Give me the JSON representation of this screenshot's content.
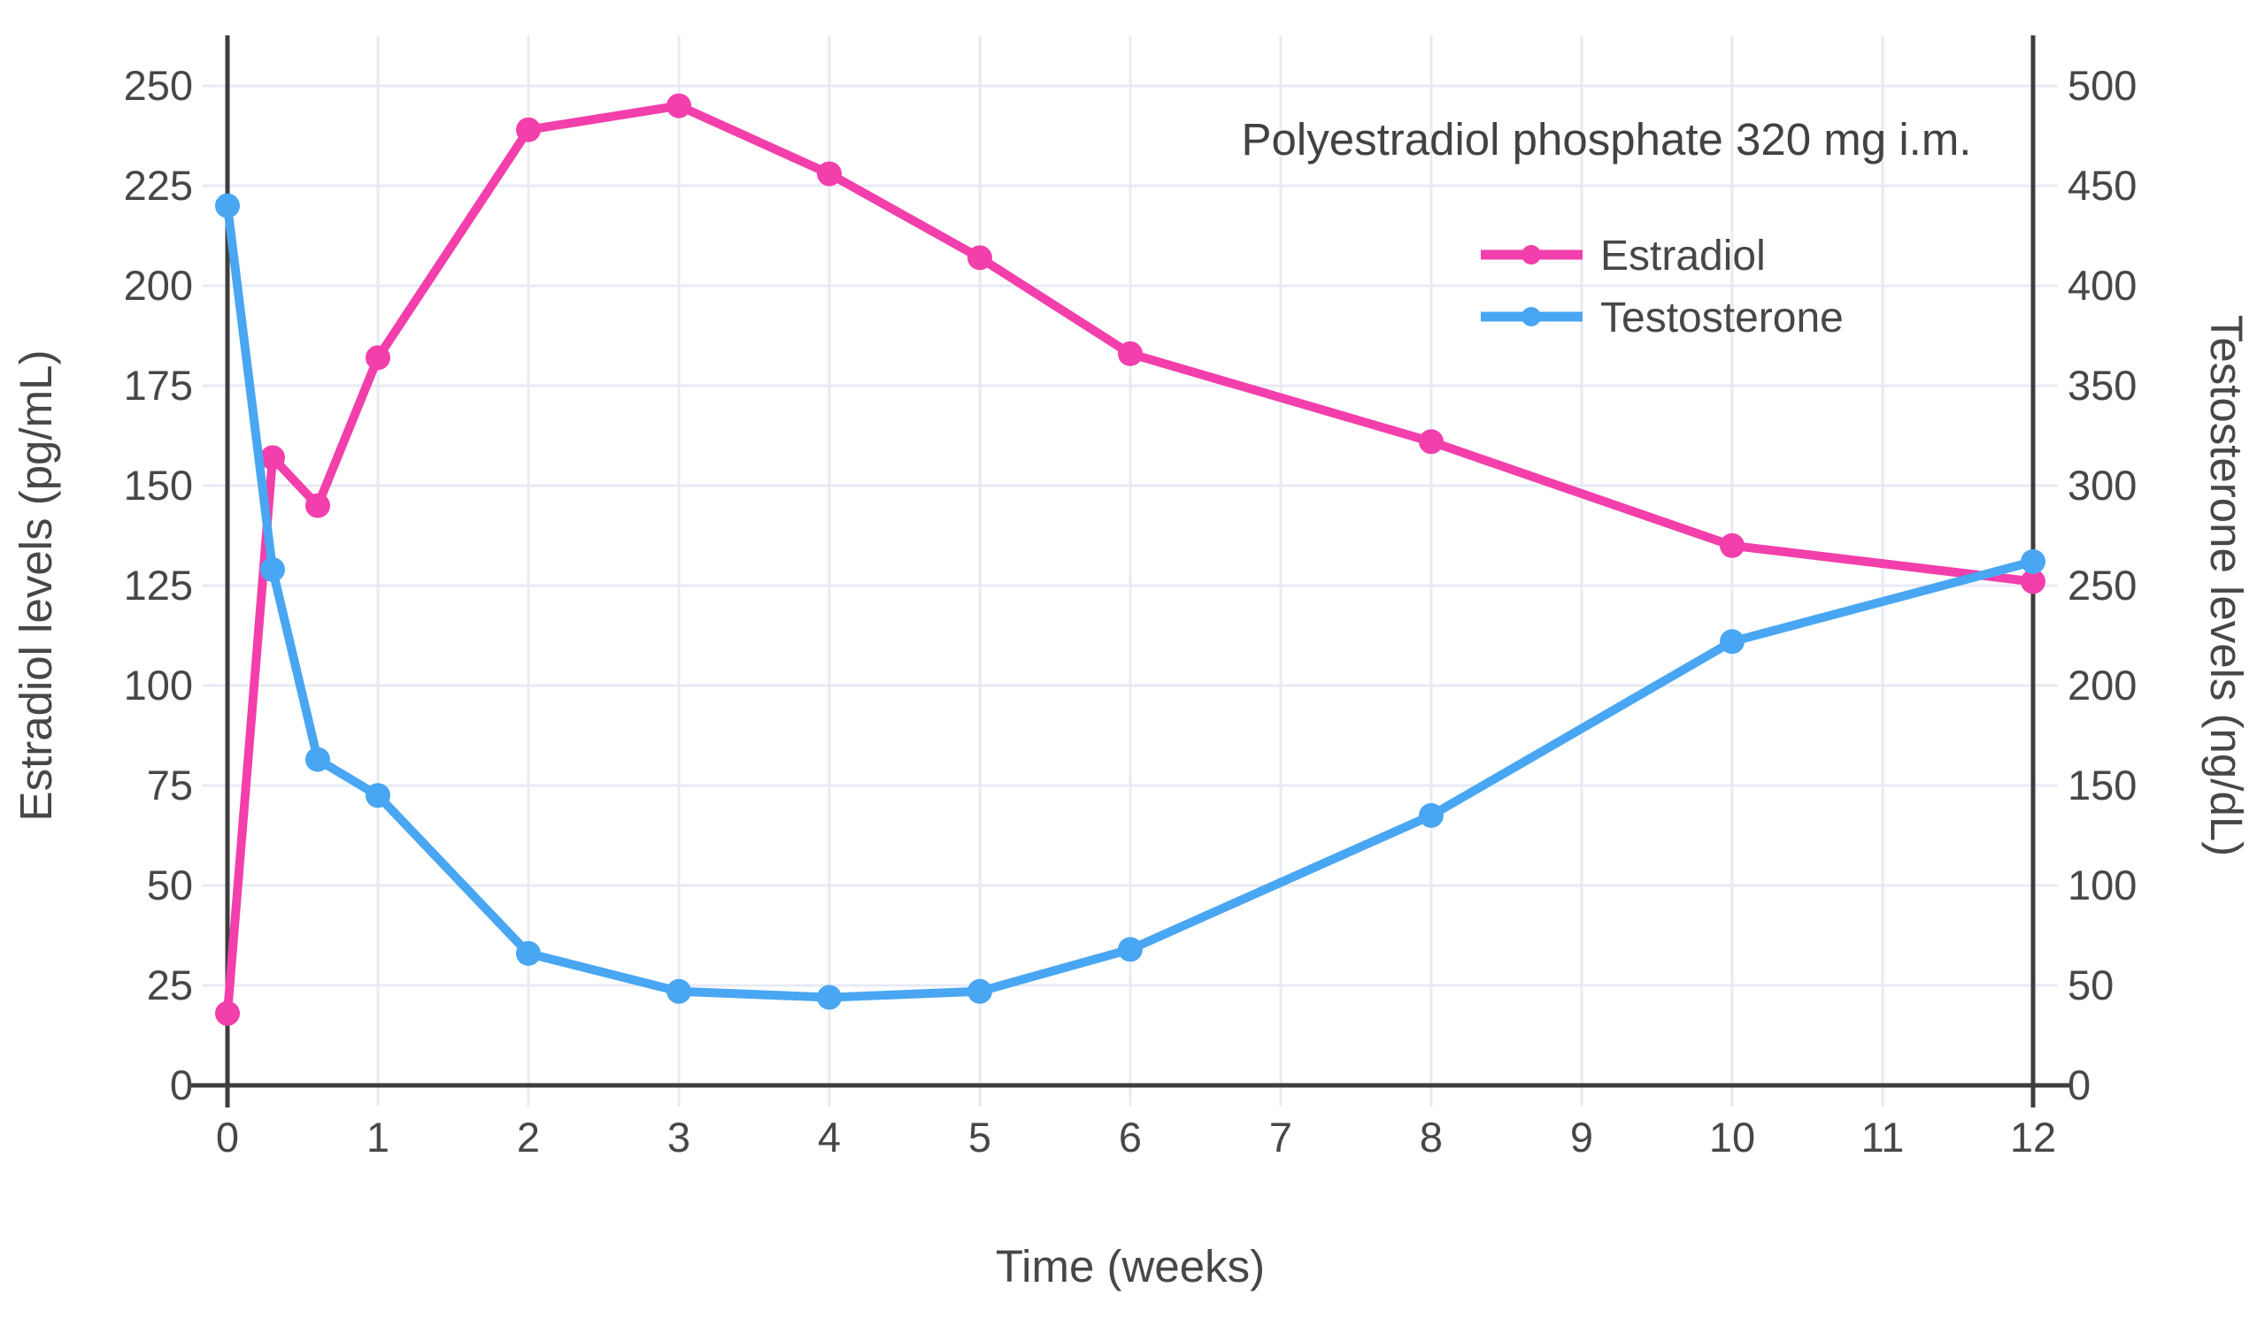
{
  "chart_data": {
    "type": "line",
    "annotation": "Polyestradiol phosphate 320 mg i.m.",
    "xlabel": "Time (weeks)",
    "ylabel_left": "Estradiol levels (pg/mL)",
    "ylabel_right": "Testosterone levels (ng/dL)",
    "xlim": [
      0,
      12
    ],
    "ylim_left": [
      0,
      250
    ],
    "ylim_right": [
      0,
      500
    ],
    "x_ticks": [
      0,
      1,
      2,
      3,
      4,
      5,
      6,
      7,
      8,
      9,
      10,
      11,
      12
    ],
    "y_ticks_left": [
      0,
      25,
      50,
      75,
      100,
      125,
      150,
      175,
      200,
      225,
      250
    ],
    "y_ticks_right": [
      0,
      50,
      100,
      150,
      200,
      250,
      300,
      350,
      400,
      450,
      500
    ],
    "grid": true,
    "legend_position": "top-right",
    "x": [
      0,
      0.3,
      0.6,
      1,
      2,
      3,
      4,
      5,
      6,
      8,
      10,
      12
    ],
    "series": [
      {
        "name": "Estradiol",
        "axis": "left",
        "unit": "pg/mL",
        "color": "#F23FAB",
        "values": [
          18,
          157,
          145,
          182,
          239,
          245,
          228,
          207,
          183,
          161,
          135,
          126
        ]
      },
      {
        "name": "Testosterone",
        "axis": "right",
        "unit": "ng/dL",
        "color": "#49A6F2",
        "values": [
          440,
          258,
          163,
          145,
          66,
          47,
          44,
          47,
          68,
          135,
          222,
          262
        ]
      }
    ],
    "colors": {
      "grid": "#E8EBF5",
      "axis_line": "#3D3D3D",
      "text": "#474747"
    }
  }
}
